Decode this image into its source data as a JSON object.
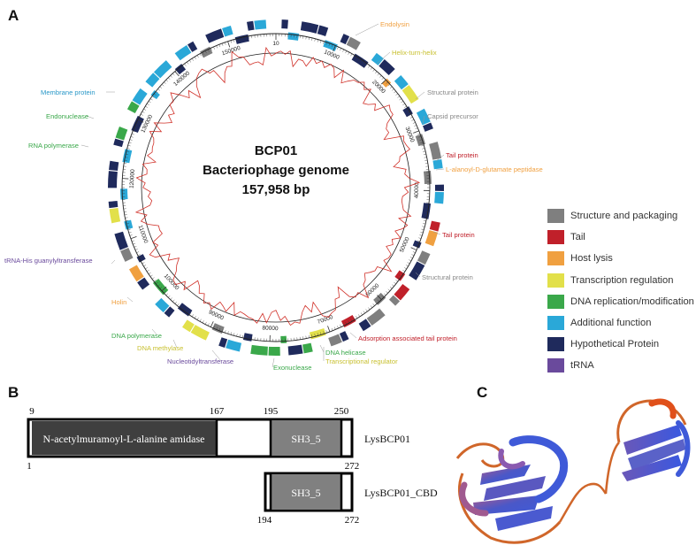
{
  "panels": {
    "a": "A",
    "b": "B",
    "c": "C"
  },
  "genome": {
    "name": "BCP01",
    "subtitle": "Bacteriophage genome",
    "size": "157,958 bp"
  },
  "ruler_ticks": [
    "10",
    "10000",
    "20000",
    "30000",
    "40000",
    "50000",
    "60000",
    "70000",
    "80000",
    "90000",
    "100000",
    "110000",
    "120000",
    "130000",
    "140000",
    "150000"
  ],
  "gene_labels": [
    {
      "text": "Endolysin",
      "category": "host_lysis"
    },
    {
      "text": "Helix-turn-helix",
      "category": "transcription"
    },
    {
      "text": "Structural protein",
      "category": "structure"
    },
    {
      "text": "Capsid precursor",
      "category": "structure"
    },
    {
      "text": "Tail protein",
      "category": "tail"
    },
    {
      "text": "L-alanoyl-D-glutamate peptidase",
      "category": "host_lysis"
    },
    {
      "text": "Tail protein",
      "category": "tail"
    },
    {
      "text": "Structural protein",
      "category": "structure"
    },
    {
      "text": "Adsorption associated tail protein",
      "category": "tail"
    },
    {
      "text": "Transcriptional regulator",
      "category": "transcription"
    },
    {
      "text": "DNA helicase",
      "category": "dna"
    },
    {
      "text": "Exonuclease",
      "category": "dna"
    },
    {
      "text": "Nucleotidyltransferase",
      "category": "trna"
    },
    {
      "text": "DNA methylase",
      "category": "transcription"
    },
    {
      "text": "DNA polymerase",
      "category": "dna"
    },
    {
      "text": "Holin",
      "category": "host_lysis"
    },
    {
      "text": "tRNA-His guanylyltransferase",
      "category": "trna"
    },
    {
      "text": "RNA polymerase",
      "category": "dna"
    },
    {
      "text": "Endonuclease",
      "category": "dna"
    },
    {
      "text": "Membrane protein",
      "category": "additional"
    }
  ],
  "colors": {
    "structure": "#7f7f7f",
    "tail": "#c0202a",
    "host_lysis": "#f0a040",
    "transcription": "#e2e04a",
    "dna": "#3aa84a",
    "additional": "#2aa8d8",
    "hypothetical": "#1f2a5c",
    "trna": "#6a4a9c",
    "gc_line": "#d03028",
    "label_structure": "#888888",
    "label_tail": "#c0202a",
    "label_host_lysis": "#f0a040",
    "label_transcription": "#c8c030",
    "label_dna": "#3aa84a",
    "label_additional": "#2a98c8",
    "label_trna": "#6a4a9c"
  },
  "legend": [
    {
      "label": "Structure and packaging",
      "category": "structure"
    },
    {
      "label": "Tail",
      "category": "tail"
    },
    {
      "label": "Host lysis",
      "category": "host_lysis"
    },
    {
      "label": "Transcription regulation",
      "category": "transcription"
    },
    {
      "label": "DNA replication/modification",
      "category": "dna"
    },
    {
      "label": "Additional function",
      "category": "additional"
    },
    {
      "label": "Hypothetical Protein",
      "category": "hypothetical"
    },
    {
      "label": "tRNA",
      "category": "trna"
    }
  ],
  "domains": {
    "full_name": "LysBCP01",
    "cbd_name": "LysBCP01_CBD",
    "amidase_label": "N-acetylmuramoyl-L-alanine amidase",
    "sh3_label": "SH3_5",
    "sh3_label_cbd": "SH3_5",
    "pos_9": "9",
    "pos_167": "167",
    "pos_195": "195",
    "pos_250": "250",
    "pos_1": "1",
    "pos_272": "272",
    "pos_194": "194",
    "pos_272_cbd": "272"
  },
  "structure_icon": "protein-ribbon-structure"
}
